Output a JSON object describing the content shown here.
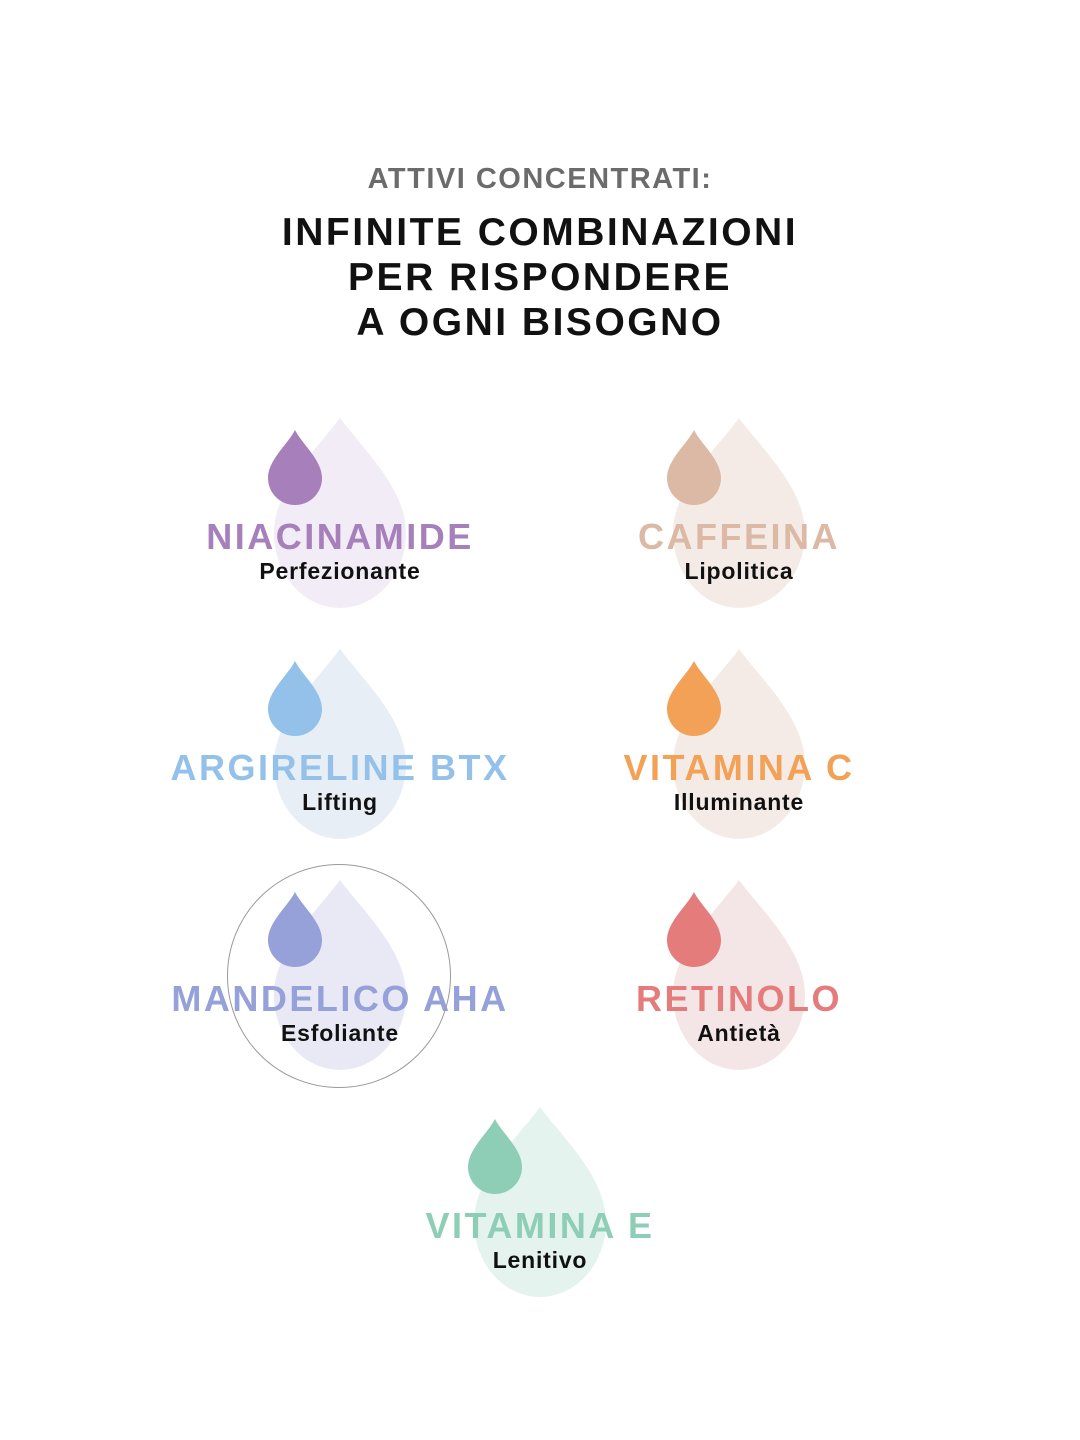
{
  "header": {
    "kicker": "ATTIVI CONCENTRATI:",
    "headline_lines": [
      "INFINITE COMBINAZIONI",
      "PER RISPONDERE",
      "A OGNI BISOGNO"
    ]
  },
  "actives": [
    {
      "name": "NIACINAMIDE",
      "benefit": "Perfezionante",
      "color": "#a67fbb",
      "light": "#f1ecf5",
      "icon": "drop-icon"
    },
    {
      "name": "CAFFEINA",
      "benefit": "Lipolitica",
      "color": "#dbb9a4",
      "light": "#f4ebe6",
      "icon": "drop-icon"
    },
    {
      "name": "ARGIRELINE BTX",
      "benefit": "Lifting",
      "color": "#94c1ea",
      "light": "#e7eef5",
      "icon": "drop-icon"
    },
    {
      "name": "VITAMINA C",
      "benefit": "Illuminante",
      "color": "#f2a157",
      "light": "#f4ebe6",
      "icon": "drop-icon"
    },
    {
      "name": "MANDELICO AHA",
      "benefit": "Esfoliante",
      "color": "#95a1d8",
      "light": "#e8e9f5",
      "icon": "drop-icon"
    },
    {
      "name": "RETINOLO",
      "benefit": "Antietà",
      "color": "#e57c7c",
      "light": "#f4e6e6",
      "icon": "drop-icon"
    },
    {
      "name": "VITAMINA E",
      "benefit": "Lenitivo",
      "color": "#8ecdb6",
      "light": "#e4f3ee",
      "icon": "drop-icon"
    }
  ]
}
